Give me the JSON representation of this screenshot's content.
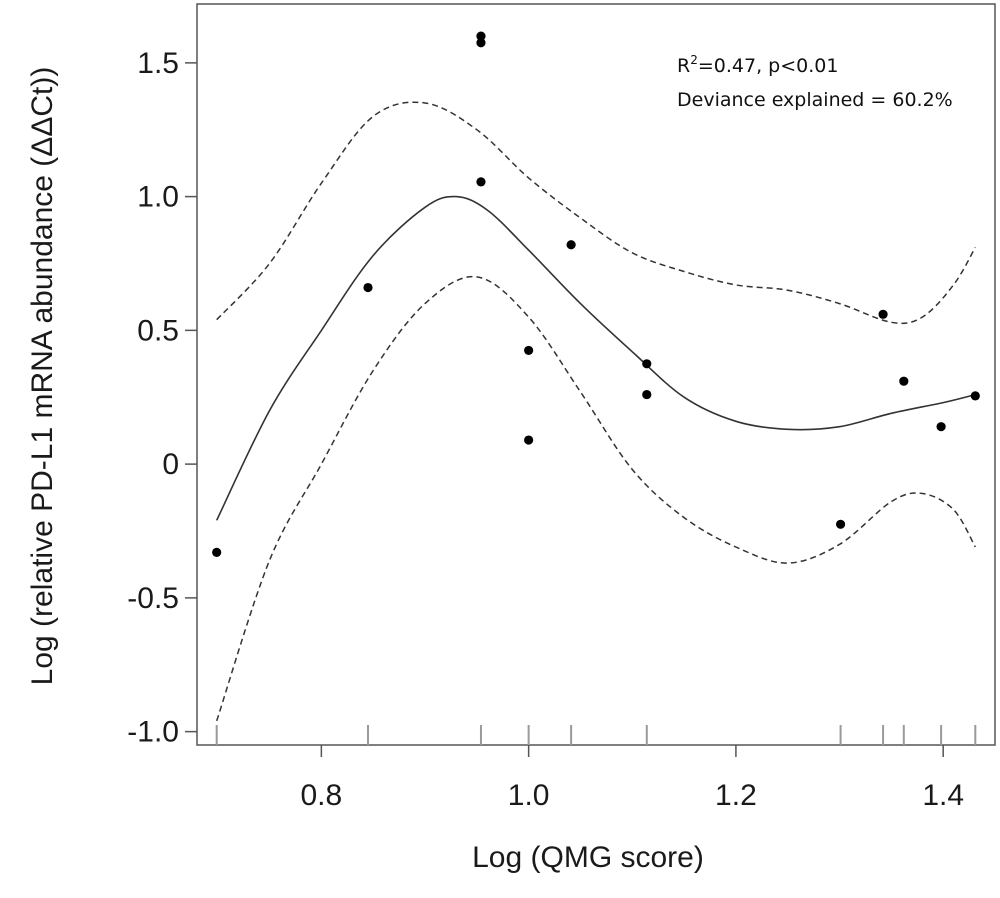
{
  "chart_data": {
    "type": "scatter",
    "xlabel": "Log (QMG score)",
    "ylabel": "Log (relative PD-L1 mRNA abundance (ΔΔCt))",
    "xlim": [
      0.68,
      1.45
    ],
    "ylim": [
      -1.05,
      1.72
    ],
    "x_ticks": [
      "0.8",
      "1.0",
      "1.2",
      "1.4"
    ],
    "y_ticks": [
      "-1.0",
      "-0.5",
      "0",
      "0.5",
      "1.0",
      "1.5"
    ],
    "annotations": {
      "r2_prefix": "R",
      "r2_sup": "2",
      "r2_rest": "=0.47, p<0.01",
      "deviance": "Deviance explained = 60.2%"
    },
    "points": [
      {
        "x": 0.699,
        "y": -0.33
      },
      {
        "x": 0.845,
        "y": 0.66
      },
      {
        "x": 0.954,
        "y": 1.6
      },
      {
        "x": 0.954,
        "y": 1.575
      },
      {
        "x": 0.954,
        "y": 1.055
      },
      {
        "x": 1.0,
        "y": 0.425
      },
      {
        "x": 1.0,
        "y": 0.09
      },
      {
        "x": 1.041,
        "y": 0.82
      },
      {
        "x": 1.114,
        "y": 0.375
      },
      {
        "x": 1.114,
        "y": 0.26
      },
      {
        "x": 1.301,
        "y": -0.225
      },
      {
        "x": 1.342,
        "y": 0.56
      },
      {
        "x": 1.362,
        "y": 0.31
      },
      {
        "x": 1.398,
        "y": 0.14
      },
      {
        "x": 1.431,
        "y": 0.255
      }
    ],
    "rug_x": [
      0.699,
      0.845,
      0.954,
      1.0,
      1.041,
      1.114,
      1.301,
      1.342,
      1.362,
      1.398,
      1.431
    ],
    "fit_line": [
      {
        "x": 0.699,
        "y": -0.21
      },
      {
        "x": 0.75,
        "y": 0.2
      },
      {
        "x": 0.8,
        "y": 0.5
      },
      {
        "x": 0.85,
        "y": 0.78
      },
      {
        "x": 0.9,
        "y": 0.96
      },
      {
        "x": 0.93,
        "y": 1.0
      },
      {
        "x": 0.96,
        "y": 0.95
      },
      {
        "x": 1.0,
        "y": 0.8
      },
      {
        "x": 1.05,
        "y": 0.6
      },
      {
        "x": 1.1,
        "y": 0.42
      },
      {
        "x": 1.15,
        "y": 0.25
      },
      {
        "x": 1.2,
        "y": 0.16
      },
      {
        "x": 1.25,
        "y": 0.13
      },
      {
        "x": 1.3,
        "y": 0.14
      },
      {
        "x": 1.35,
        "y": 0.19
      },
      {
        "x": 1.4,
        "y": 0.23
      },
      {
        "x": 1.431,
        "y": 0.26
      }
    ],
    "upper_band": [
      {
        "x": 0.699,
        "y": 0.54
      },
      {
        "x": 0.75,
        "y": 0.75
      },
      {
        "x": 0.8,
        "y": 1.05
      },
      {
        "x": 0.85,
        "y": 1.3
      },
      {
        "x": 0.9,
        "y": 1.35
      },
      {
        "x": 0.95,
        "y": 1.25
      },
      {
        "x": 1.0,
        "y": 1.07
      },
      {
        "x": 1.05,
        "y": 0.92
      },
      {
        "x": 1.1,
        "y": 0.79
      },
      {
        "x": 1.15,
        "y": 0.72
      },
      {
        "x": 1.2,
        "y": 0.67
      },
      {
        "x": 1.25,
        "y": 0.65
      },
      {
        "x": 1.3,
        "y": 0.6
      },
      {
        "x": 1.35,
        "y": 0.53
      },
      {
        "x": 1.38,
        "y": 0.55
      },
      {
        "x": 1.41,
        "y": 0.67
      },
      {
        "x": 1.431,
        "y": 0.81
      }
    ],
    "lower_band": [
      {
        "x": 0.699,
        "y": -0.96
      },
      {
        "x": 0.75,
        "y": -0.36
      },
      {
        "x": 0.8,
        "y": 0.0
      },
      {
        "x": 0.85,
        "y": 0.35
      },
      {
        "x": 0.9,
        "y": 0.6
      },
      {
        "x": 0.95,
        "y": 0.7
      },
      {
        "x": 1.0,
        "y": 0.55
      },
      {
        "x": 1.05,
        "y": 0.27
      },
      {
        "x": 1.1,
        "y": -0.02
      },
      {
        "x": 1.15,
        "y": -0.2
      },
      {
        "x": 1.2,
        "y": -0.31
      },
      {
        "x": 1.25,
        "y": -0.37
      },
      {
        "x": 1.3,
        "y": -0.3
      },
      {
        "x": 1.35,
        "y": -0.14
      },
      {
        "x": 1.38,
        "y": -0.11
      },
      {
        "x": 1.41,
        "y": -0.17
      },
      {
        "x": 1.431,
        "y": -0.31
      }
    ],
    "grid": false,
    "colors": {
      "points": "#000000",
      "fit": "#333333",
      "band": "#333333",
      "axis": "#555555"
    }
  }
}
